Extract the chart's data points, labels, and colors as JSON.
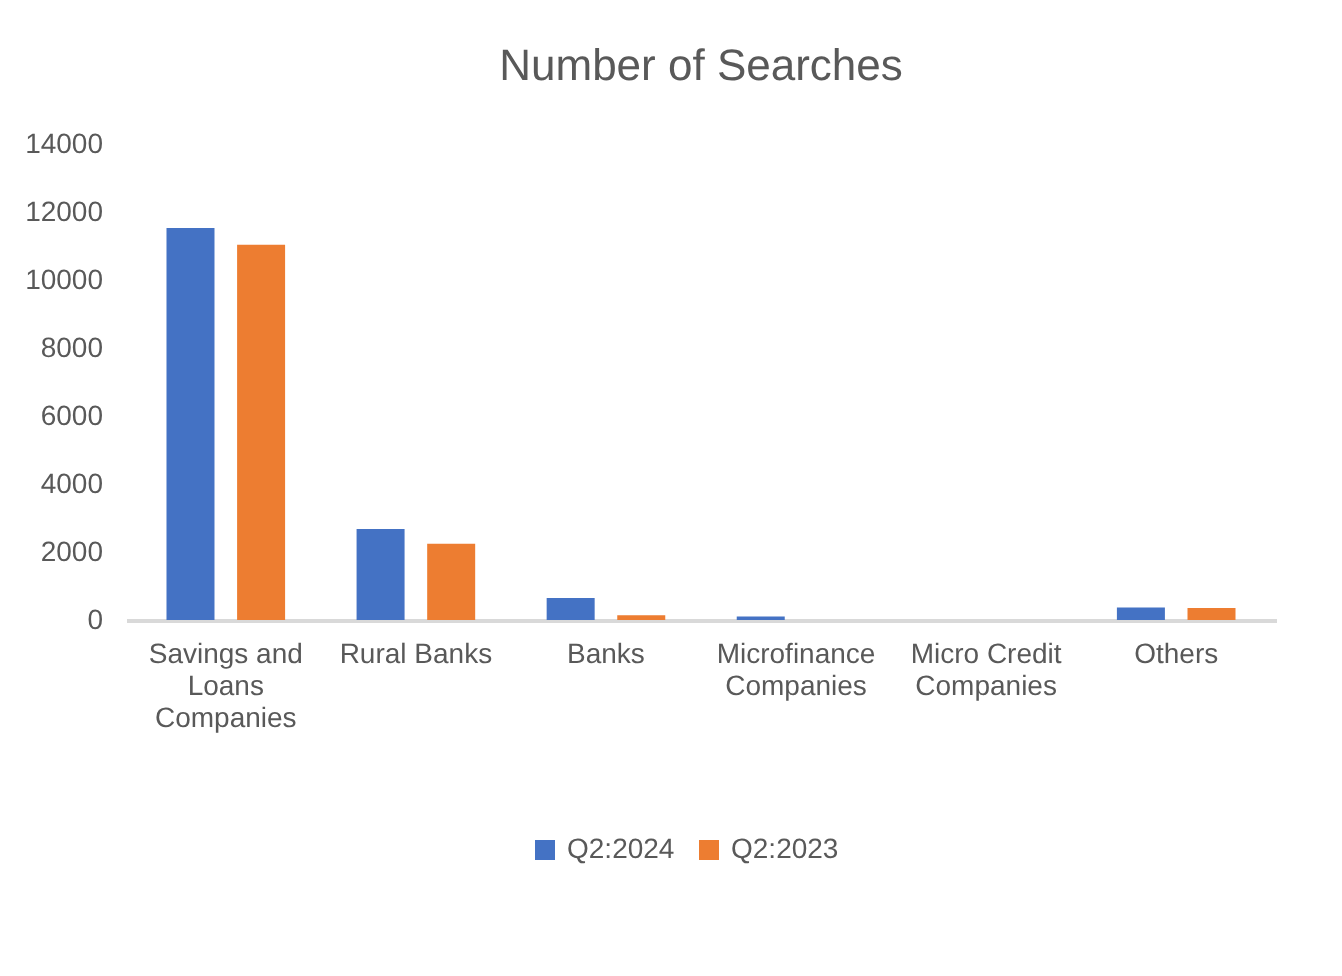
{
  "chart_data": {
    "type": "bar",
    "title": "Number of Searches",
    "categories": [
      "Savings and Loans Companies",
      "Rural Banks",
      "Banks",
      "Microfinance Companies",
      "Micro Credit Companies",
      "Others"
    ],
    "series": [
      {
        "name": "Q2:2024",
        "color": "#4472c4",
        "values": [
          11530,
          2680,
          650,
          100,
          0,
          370
        ]
      },
      {
        "name": "Q2:2023",
        "color": "#ed7d31",
        "values": [
          11040,
          2240,
          140,
          0,
          0,
          350
        ]
      }
    ],
    "ylim": [
      0,
      14000
    ],
    "yticks": [
      0,
      2000,
      4000,
      6000,
      8000,
      10000,
      12000,
      14000
    ],
    "grid": false,
    "legend": "bottom"
  }
}
